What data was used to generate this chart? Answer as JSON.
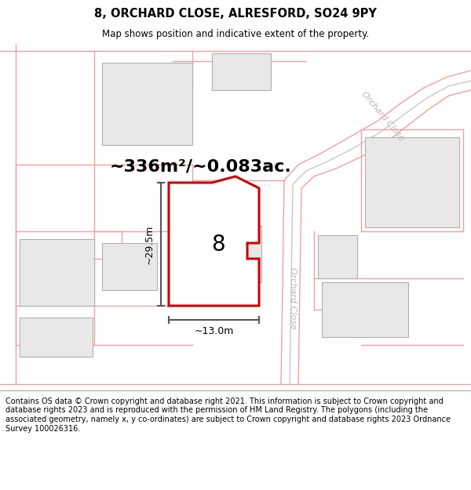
{
  "title": "8, ORCHARD CLOSE, ALRESFORD, SO24 9PY",
  "subtitle": "Map shows position and indicative extent of the property.",
  "footer": "Contains OS data © Crown copyright and database right 2021. This information is subject to Crown copyright and database rights 2023 and is reproduced with the permission of HM Land Registry. The polygons (including the associated geometry, namely x, y co-ordinates) are subject to Crown copyright and database rights 2023 Ordnance Survey 100026316.",
  "area_text": "~336m²/~0.083ac.",
  "height_label": "~29.5m",
  "width_label": "~13.0m",
  "number_label": "8",
  "road_label_top": "Orchard Close",
  "road_label_bottom": "Orchard Close",
  "bg_color": "#ffffff",
  "map_bg": "#ffffff",
  "building_fill": "#e8e8e8",
  "building_stroke": "#b0b0b0",
  "plot_stroke": "#cc0000",
  "plot_fill": "#ffffff",
  "road_color": "#f0a0a0",
  "road_center_color": "#c8c8c8",
  "dim_line_color": "#555555",
  "road_text_color": "#b8b8b8",
  "title_fontsize": 10.5,
  "subtitle_fontsize": 8.5,
  "footer_fontsize": 7.0,
  "area_fontsize": 16,
  "label_fontsize": 9,
  "number_fontsize": 20,
  "road_label_fontsize": 8
}
